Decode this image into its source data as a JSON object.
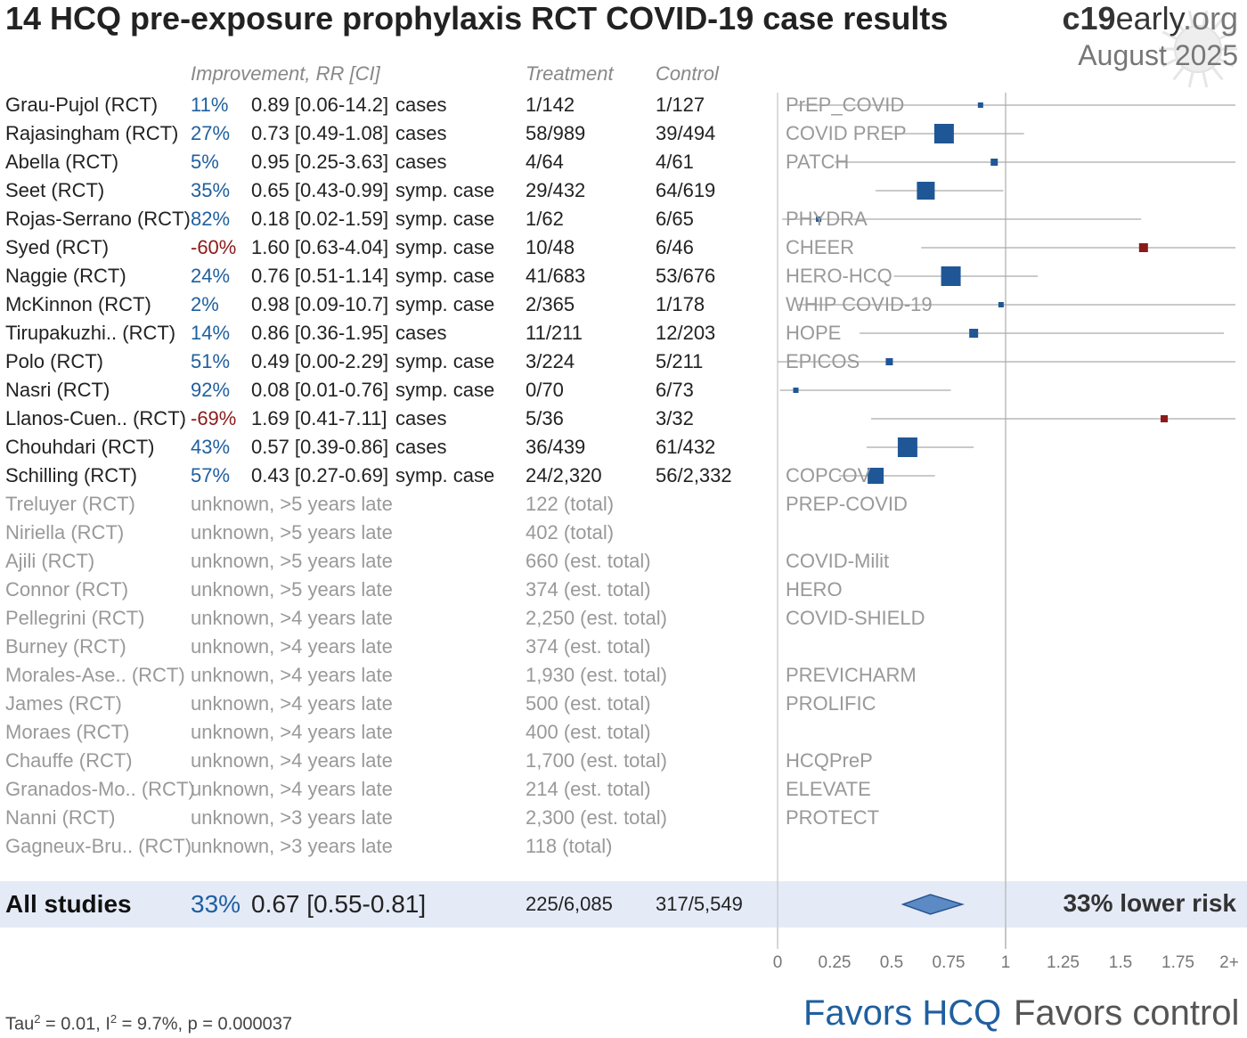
{
  "title": "14 HCQ pre-exposure prophylaxis RCT COVID-19 case results",
  "brand": {
    "bold": "c19",
    "rest": "early",
    "org": ".org"
  },
  "date": "August 2025",
  "headers": {
    "improvement": "Improvement, RR [CI]",
    "treatment": "Treatment",
    "control": "Control"
  },
  "colors": {
    "favor": "#1f5f9f",
    "against": "#8b1a1a",
    "summary_band": "#e4ebf7",
    "diamond": "#5b8ac4"
  },
  "chart_data": {
    "type": "forest",
    "xaxis_ticks": [
      "0",
      "0.25",
      "0.5",
      "0.75",
      "1",
      "1.25",
      "1.5",
      "1.75",
      "2+"
    ],
    "xlim": [
      0,
      2
    ],
    "reference_line": 1,
    "studies": [
      {
        "name": "Grau-Pujol (RCT)",
        "improvement": "11%",
        "rr_text": "0.89 [0.06-14.2]",
        "outcome": "cases",
        "treatment": "1/142",
        "control": "1/127",
        "trial": "PrEP_COVID",
        "rr": 0.89,
        "lo": 0.06,
        "hi": 14.2,
        "weight": 1
      },
      {
        "name": "Rajasingham (RCT)",
        "improvement": "27%",
        "rr_text": "0.73 [0.49-1.08]",
        "outcome": "cases",
        "treatment": "58/989",
        "control": "39/494",
        "trial": "COVID PREP",
        "rr": 0.73,
        "lo": 0.49,
        "hi": 1.08,
        "weight": 9
      },
      {
        "name": "Abella (RCT)",
        "improvement": "5%",
        "rr_text": "0.95 [0.25-3.63]",
        "outcome": "cases",
        "treatment": "4/64",
        "control": "4/61",
        "trial": "PATCH",
        "rr": 0.95,
        "lo": 0.25,
        "hi": 3.63,
        "weight": 2
      },
      {
        "name": "Seet (RCT)",
        "improvement": "35%",
        "rr_text": "0.65 [0.43-0.99]",
        "outcome": "symp. case",
        "treatment": "29/432",
        "control": "64/619",
        "trial": "",
        "rr": 0.65,
        "lo": 0.43,
        "hi": 0.99,
        "weight": 8
      },
      {
        "name": "Rojas-Serrano (RCT)",
        "improvement": "82%",
        "rr_text": "0.18 [0.02-1.59]",
        "outcome": "symp. case",
        "treatment": "1/62",
        "control": "6/65",
        "trial": "PHYDRA",
        "rr": 0.18,
        "lo": 0.02,
        "hi": 1.59,
        "weight": 1
      },
      {
        "name": "Syed (RCT)",
        "improvement": "-60%",
        "rr_text": "1.60 [0.63-4.04]",
        "outcome": "symp. case",
        "treatment": "10/48",
        "control": "6/46",
        "trial": "CHEER",
        "rr": 1.6,
        "lo": 0.63,
        "hi": 4.04,
        "weight": 3
      },
      {
        "name": "Naggie (RCT)",
        "improvement": "24%",
        "rr_text": "0.76 [0.51-1.14]",
        "outcome": "symp. case",
        "treatment": "41/683",
        "control": "53/676",
        "trial": "HERO-HCQ",
        "rr": 0.76,
        "lo": 0.51,
        "hi": 1.14,
        "weight": 9
      },
      {
        "name": "McKinnon (RCT)",
        "improvement": "2%",
        "rr_text": "0.98 [0.09-10.7]",
        "outcome": "symp. case",
        "treatment": "2/365",
        "control": "1/178",
        "trial": "WHIP COVID-19",
        "rr": 0.98,
        "lo": 0.09,
        "hi": 10.7,
        "weight": 1
      },
      {
        "name": "Tirupakuzhi.. (RCT)",
        "improvement": "14%",
        "rr_text": "0.86 [0.36-1.95]",
        "outcome": "cases",
        "treatment": "11/211",
        "control": "12/203",
        "trial": "HOPE",
        "rr": 0.86,
        "lo": 0.36,
        "hi": 1.95,
        "weight": 3
      },
      {
        "name": "Polo (RCT)",
        "improvement": "51%",
        "rr_text": "0.49 [0.00-2.29]",
        "outcome": "symp. case",
        "treatment": "3/224",
        "control": "5/211",
        "trial": "EPICOS",
        "rr": 0.49,
        "lo": 0.0,
        "hi": 2.29,
        "weight": 2
      },
      {
        "name": "Nasri (RCT)",
        "improvement": "92%",
        "rr_text": "0.08 [0.01-0.76]",
        "outcome": "symp. case",
        "treatment": "0/70",
        "control": "6/73",
        "trial": "",
        "rr": 0.08,
        "lo": 0.01,
        "hi": 0.76,
        "weight": 1
      },
      {
        "name": "Llanos-Cuen.. (RCT)",
        "improvement": "-69%",
        "rr_text": "1.69 [0.41-7.11]",
        "outcome": "cases",
        "treatment": "5/36",
        "control": "3/32",
        "trial": "",
        "rr": 1.69,
        "lo": 0.41,
        "hi": 7.11,
        "weight": 2
      },
      {
        "name": "Chouhdari (RCT)",
        "improvement": "43%",
        "rr_text": "0.57 [0.39-0.86]",
        "outcome": "cases",
        "treatment": "36/439",
        "control": "61/432",
        "trial": "",
        "rr": 0.57,
        "lo": 0.39,
        "hi": 0.86,
        "weight": 9
      },
      {
        "name": "Schilling (RCT)",
        "improvement": "57%",
        "rr_text": "0.43 [0.27-0.69]",
        "outcome": "symp. case",
        "treatment": "24/2,320",
        "control": "56/2,332",
        "trial": "COPCOV",
        "rr": 0.43,
        "lo": 0.27,
        "hi": 0.69,
        "weight": 7
      }
    ],
    "unknown": [
      {
        "name": "Treluyer (RCT)",
        "status": "unknown, >5 years late",
        "total": "122 (total)",
        "trial": "PREP-COVID"
      },
      {
        "name": "Niriella (RCT)",
        "status": "unknown, >5 years late",
        "total": "402 (total)",
        "trial": ""
      },
      {
        "name": "Ajili (RCT)",
        "status": "unknown, >5 years late",
        "total": "660 (est. total)",
        "trial": "COVID-Milit"
      },
      {
        "name": "Connor (RCT)",
        "status": "unknown, >5 years late",
        "total": "374 (est. total)",
        "trial": "HERO"
      },
      {
        "name": "Pellegrini (RCT)",
        "status": "unknown, >4 years late",
        "total": "2,250 (est. total)",
        "trial": "COVID-SHIELD"
      },
      {
        "name": "Burney (RCT)",
        "status": "unknown, >4 years late",
        "total": "374 (est. total)",
        "trial": ""
      },
      {
        "name": "Morales-Ase.. (RCT)",
        "status": "unknown, >4 years late",
        "total": "1,930 (est. total)",
        "trial": "PREVICHARM"
      },
      {
        "name": "James (RCT)",
        "status": "unknown, >4 years late",
        "total": "500 (est. total)",
        "trial": "PROLIFIC"
      },
      {
        "name": "Moraes (RCT)",
        "status": "unknown, >4 years late",
        "total": "400 (est. total)",
        "trial": ""
      },
      {
        "name": "Chauffe (RCT)",
        "status": "unknown, >4 years late",
        "total": "1,700 (est. total)",
        "trial": "HCQPreP"
      },
      {
        "name": "Granados-Mo.. (RCT)",
        "status": "unknown, >4 years late",
        "total": "214 (est. total)",
        "trial": "ELEVATE"
      },
      {
        "name": "Nanni (RCT)",
        "status": "unknown, >3 years late",
        "total": "2,300 (est. total)",
        "trial": "PROTECT"
      },
      {
        "name": "Gagneux-Bru.. (RCT)",
        "status": "unknown, >3 years late",
        "total": "118 (total)",
        "trial": ""
      }
    ],
    "summary": {
      "label": "All studies",
      "improvement": "33%",
      "rr_text": "0.67 [0.55-0.81]",
      "treatment": "225/6,085",
      "control": "317/5,549",
      "rr": 0.67,
      "lo": 0.55,
      "hi": 0.81,
      "verdict": "33% lower risk"
    }
  },
  "stats": {
    "tau_label": "Tau",
    "tau_rest": " = 0.01, I",
    "i_rest": " = 9.7%, p = 0.000037",
    "sup": "2"
  },
  "favors": {
    "left": "Favors HCQ",
    "right": "Favors control"
  }
}
